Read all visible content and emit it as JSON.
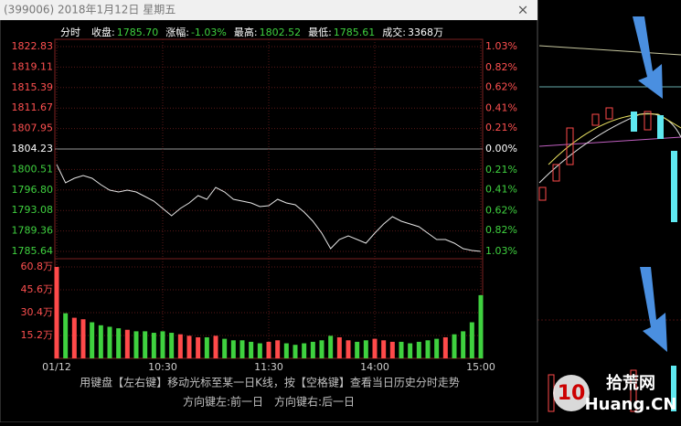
{
  "window_title": "(399006) 2018年1月12日 星期五",
  "close_button": "×",
  "header": {
    "mode": "分时",
    "items": [
      {
        "label": "收盘:",
        "value": "1785.70"
      },
      {
        "label": "涨幅:",
        "value": "-1.03%"
      },
      {
        "label": "最高:",
        "value": "1802.52"
      },
      {
        "label": "最低:",
        "value": "1785.61"
      },
      {
        "label": "成交:",
        "value": "3368万"
      }
    ]
  },
  "chart_data": [
    {
      "type": "line",
      "color": "#e6e6e6",
      "grid": true,
      "x": [
        0,
        5,
        10,
        15,
        20,
        25,
        30,
        35,
        40,
        45,
        50,
        55,
        60,
        65,
        70,
        75,
        80,
        85,
        90,
        95,
        100,
        105,
        110,
        115,
        120,
        125,
        130,
        135,
        140,
        145,
        150,
        155,
        160,
        165,
        170,
        175,
        180,
        185,
        190,
        195,
        200,
        205,
        210,
        215,
        220,
        225,
        230,
        235,
        240
      ],
      "values": [
        1801.41,
        1798.09,
        1798.92,
        1799.42,
        1798.92,
        1797.76,
        1796.76,
        1796.43,
        1796.76,
        1796.43,
        1795.6,
        1794.77,
        1793.44,
        1792.11,
        1793.44,
        1794.44,
        1795.77,
        1795.1,
        1797.26,
        1796.43,
        1795.1,
        1794.77,
        1794.44,
        1793.78,
        1793.94,
        1795.1,
        1794.44,
        1794.11,
        1792.78,
        1791.12,
        1788.96,
        1786.14,
        1787.8,
        1788.46,
        1787.8,
        1787.13,
        1788.96,
        1790.62,
        1791.95,
        1791.12,
        1790.62,
        1790.12,
        1788.96,
        1787.8,
        1787.8,
        1787.13,
        1786.14,
        1785.81,
        1785.64
      ],
      "xlim": [
        0,
        240
      ],
      "ylim": [
        1785.64,
        1822.83
      ],
      "yticks": [
        1822.83,
        1819.11,
        1815.39,
        1811.67,
        1807.95,
        1804.23,
        1800.51,
        {
          "value": 1796.8,
          "label": "1796.80"
        },
        1793.08,
        1789.36,
        1785.64
      ],
      "y2lim": [
        -1.03,
        1.03
      ],
      "y2ticks": [
        {
          "value": 1.03,
          "label": "1.03%"
        },
        {
          "value": 0.82,
          "label": "0.82%"
        },
        {
          "value": 0.62,
          "label": "0.62%"
        },
        {
          "value": 0.41,
          "label": "0.41%"
        },
        {
          "value": 0.21,
          "label": "0.21%"
        },
        {
          "value": 0,
          "label": "0.00%"
        },
        {
          "value": -0.21,
          "label": "0.21%"
        },
        {
          "value": -0.41,
          "label": "0.41%"
        },
        {
          "value": -0.62,
          "label": "0.62%"
        },
        {
          "value": -0.82,
          "label": "0.82%"
        },
        {
          "value": -1.03,
          "label": "1.03%"
        }
      ]
    },
    {
      "type": "bar",
      "up_color": "#ff4a4a",
      "down_color": "#3fd13f",
      "grid": true,
      "x": [
        0,
        5,
        10,
        15,
        20,
        25,
        30,
        35,
        40,
        45,
        50,
        55,
        60,
        65,
        70,
        75,
        80,
        85,
        90,
        95,
        100,
        105,
        110,
        115,
        120,
        125,
        130,
        135,
        140,
        145,
        150,
        155,
        160,
        165,
        170,
        175,
        180,
        185,
        190,
        195,
        200,
        205,
        210,
        215,
        220,
        225,
        230,
        235,
        240
      ],
      "values": [
        60.8,
        30,
        27,
        26,
        24,
        22,
        21,
        20,
        19,
        18,
        18,
        17,
        18,
        17,
        16,
        15,
        14,
        14,
        15,
        13,
        12,
        12,
        11,
        10,
        11,
        12,
        10,
        9,
        10,
        11,
        12,
        15,
        14,
        12,
        11,
        12,
        13,
        12,
        11,
        11,
        10,
        11,
        12,
        13,
        14,
        16,
        18,
        24,
        42
      ],
      "xlim": [
        0,
        240
      ],
      "ylim": [
        0,
        60.8
      ],
      "xticks": [
        {
          "value": 0,
          "label": "01/12"
        },
        {
          "value": 60,
          "label": "10:30"
        },
        {
          "value": 120,
          "label": "11:30"
        },
        {
          "value": 180,
          "label": "14:00"
        },
        {
          "value": 240,
          "label": "15:00"
        }
      ],
      "yticks": [
        {
          "value": 60.8,
          "label": "60.8万"
        },
        {
          "value": 45.6,
          "label": "45.6万"
        },
        {
          "value": 30.4,
          "label": "30.4万"
        },
        {
          "value": 15.2,
          "label": "15.2万"
        }
      ]
    }
  ],
  "footer": {
    "line1": "用键盘【左右键】移动光标至某一日K线，按【空格键】查看当日历史分时走势",
    "line2": [
      "方向键左:前一日",
      "方向键右:后一日"
    ]
  },
  "watermark": {
    "name": "拾荒网",
    "site": "Huang.CN"
  }
}
